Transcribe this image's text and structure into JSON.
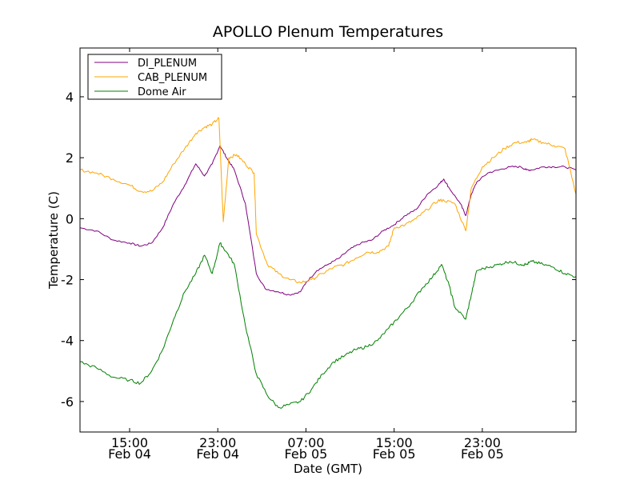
{
  "chart_data": {
    "type": "line",
    "title": "APOLLO Plenum Temperatures",
    "xlabel": "Date (GMT)",
    "ylabel": "Temperature (C)",
    "x_unit": "hours since Feb 04 10:30 GMT",
    "xlim": [
      0,
      45
    ],
    "ylim": [
      -7,
      5.6
    ],
    "x_ticks": [
      {
        "x": 4.5,
        "time": "15:00",
        "date": "Feb 04"
      },
      {
        "x": 12.5,
        "time": "23:00",
        "date": "Feb 04"
      },
      {
        "x": 20.5,
        "time": "07:00",
        "date": "Feb 05"
      },
      {
        "x": 28.5,
        "time": "15:00",
        "date": "Feb 05"
      },
      {
        "x": 36.5,
        "time": "23:00",
        "date": "Feb 05"
      }
    ],
    "y_ticks": [
      {
        "value": 4,
        "label": "4"
      },
      {
        "value": 2,
        "label": "2"
      },
      {
        "value": 0,
        "label": "0"
      },
      {
        "value": -2,
        "label": "-2"
      },
      {
        "value": -4,
        "label": "-4"
      },
      {
        "value": -6,
        "label": "-6"
      }
    ],
    "legend_position": "top-left",
    "series": [
      {
        "name": "DI_PLENUM",
        "color": "#800080",
        "points": [
          [
            0,
            -0.3
          ],
          [
            1.5,
            -0.4
          ],
          [
            3,
            -0.7
          ],
          [
            4.5,
            -0.8
          ],
          [
            5.5,
            -0.9
          ],
          [
            6.5,
            -0.8
          ],
          [
            7.5,
            -0.3
          ],
          [
            8.5,
            0.5
          ],
          [
            9.5,
            1.1
          ],
          [
            10.5,
            1.8
          ],
          [
            11.3,
            1.4
          ],
          [
            12,
            1.8
          ],
          [
            12.7,
            2.4
          ],
          [
            13.3,
            2.0
          ],
          [
            14,
            1.6
          ],
          [
            15,
            0.5
          ],
          [
            16,
            -1.8
          ],
          [
            16.8,
            -2.3
          ],
          [
            18,
            -2.4
          ],
          [
            19,
            -2.5
          ],
          [
            20,
            -2.4
          ],
          [
            20.5,
            -2.1
          ],
          [
            21.5,
            -1.7
          ],
          [
            22.5,
            -1.5
          ],
          [
            23.5,
            -1.3
          ],
          [
            24.5,
            -1.0
          ],
          [
            25.5,
            -0.8
          ],
          [
            26.5,
            -0.7
          ],
          [
            27.5,
            -0.4
          ],
          [
            28.5,
            -0.2
          ],
          [
            29.5,
            0.1
          ],
          [
            30.5,
            0.3
          ],
          [
            31.5,
            0.8
          ],
          [
            32.5,
            1.1
          ],
          [
            33,
            1.3
          ],
          [
            33.5,
            1.0
          ],
          [
            34.5,
            0.5
          ],
          [
            35,
            0.1
          ],
          [
            35.5,
            0.8
          ],
          [
            36,
            1.2
          ],
          [
            37,
            1.5
          ],
          [
            38,
            1.6
          ],
          [
            39,
            1.7
          ],
          [
            40,
            1.7
          ],
          [
            40.5,
            1.6
          ],
          [
            41,
            1.6
          ],
          [
            42,
            1.7
          ],
          [
            43,
            1.7
          ],
          [
            44,
            1.7
          ],
          [
            45,
            1.6
          ]
        ]
      },
      {
        "name": "CAB_PLENUM",
        "color": "#FFA500",
        "points": [
          [
            0,
            1.6
          ],
          [
            1.5,
            1.5
          ],
          [
            3,
            1.3
          ],
          [
            4.5,
            1.1
          ],
          [
            5.5,
            0.9
          ],
          [
            6.5,
            0.9
          ],
          [
            7.5,
            1.2
          ],
          [
            8.5,
            1.8
          ],
          [
            9.5,
            2.3
          ],
          [
            10.5,
            2.8
          ],
          [
            11.3,
            3.0
          ],
          [
            12,
            3.1
          ],
          [
            12.6,
            3.3
          ],
          [
            13,
            -0.1
          ],
          [
            13.5,
            2.0
          ],
          [
            14.2,
            2.1
          ],
          [
            15,
            1.8
          ],
          [
            15.8,
            1.5
          ],
          [
            16,
            -0.5
          ],
          [
            17,
            -1.5
          ],
          [
            18,
            -1.8
          ],
          [
            19,
            -2.0
          ],
          [
            20,
            -2.1
          ],
          [
            21,
            -2.0
          ],
          [
            22,
            -1.8
          ],
          [
            23,
            -1.6
          ],
          [
            24,
            -1.5
          ],
          [
            25,
            -1.3
          ],
          [
            26,
            -1.1
          ],
          [
            27,
            -1.1
          ],
          [
            28,
            -0.9
          ],
          [
            28.5,
            -0.3
          ],
          [
            29.5,
            -0.2
          ],
          [
            30.5,
            0.0
          ],
          [
            31.5,
            0.3
          ],
          [
            32.5,
            0.6
          ],
          [
            33,
            0.6
          ],
          [
            34,
            0.5
          ],
          [
            35,
            -0.4
          ],
          [
            35.5,
            1.0
          ],
          [
            36.5,
            1.7
          ],
          [
            37.5,
            2.0
          ],
          [
            38.5,
            2.3
          ],
          [
            39.5,
            2.5
          ],
          [
            40.5,
            2.5
          ],
          [
            41,
            2.6
          ],
          [
            42,
            2.5
          ],
          [
            43,
            2.4
          ],
          [
            44,
            2.3
          ],
          [
            45,
            0.8
          ]
        ]
      },
      {
        "name": "Dome Air",
        "color": "#008000",
        "points": [
          [
            0,
            -4.7
          ],
          [
            1.5,
            -4.9
          ],
          [
            3,
            -5.2
          ],
          [
            4.5,
            -5.3
          ],
          [
            5.5,
            -5.4
          ],
          [
            6.5,
            -5.0
          ],
          [
            7.5,
            -4.3
          ],
          [
            8.5,
            -3.3
          ],
          [
            9.5,
            -2.4
          ],
          [
            10.5,
            -1.8
          ],
          [
            11.3,
            -1.2
          ],
          [
            12,
            -1.8
          ],
          [
            12.7,
            -0.8
          ],
          [
            13.3,
            -1.1
          ],
          [
            14,
            -1.5
          ],
          [
            15,
            -3.5
          ],
          [
            16,
            -5.1
          ],
          [
            17,
            -5.8
          ],
          [
            18,
            -6.2
          ],
          [
            19,
            -6.1
          ],
          [
            20,
            -6.0
          ],
          [
            21,
            -5.6
          ],
          [
            22,
            -5.1
          ],
          [
            23,
            -4.7
          ],
          [
            24,
            -4.5
          ],
          [
            25,
            -4.3
          ],
          [
            26,
            -4.2
          ],
          [
            27,
            -4.0
          ],
          [
            28,
            -3.6
          ],
          [
            29,
            -3.2
          ],
          [
            30,
            -2.8
          ],
          [
            31,
            -2.3
          ],
          [
            32,
            -1.9
          ],
          [
            32.8,
            -1.5
          ],
          [
            33.5,
            -2.2
          ],
          [
            34,
            -2.9
          ],
          [
            35,
            -3.3
          ],
          [
            35.5,
            -2.5
          ],
          [
            36,
            -1.7
          ],
          [
            37,
            -1.6
          ],
          [
            38,
            -1.5
          ],
          [
            39,
            -1.4
          ],
          [
            40,
            -1.5
          ],
          [
            40.5,
            -1.5
          ],
          [
            41,
            -1.4
          ],
          [
            42,
            -1.5
          ],
          [
            43,
            -1.6
          ],
          [
            44,
            -1.8
          ],
          [
            45,
            -1.9
          ]
        ]
      }
    ]
  }
}
